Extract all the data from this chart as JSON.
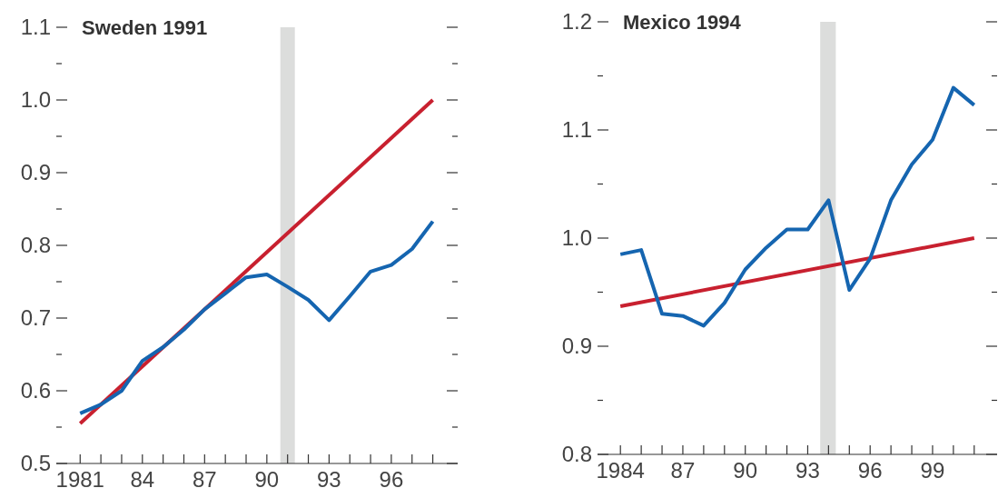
{
  "chart_data": [
    {
      "type": "line",
      "title": "Sweden 1991",
      "x": [
        1981,
        1982,
        1983,
        1984,
        1985,
        1986,
        1987,
        1988,
        1989,
        1990,
        1991,
        1992,
        1993,
        1994,
        1995,
        1996,
        1997,
        1998
      ],
      "series": [
        {
          "color": "#c8202f",
          "x": [
            1981,
            1998
          ],
          "values": [
            0.555,
            1.0
          ]
        },
        {
          "color": "#1565b0",
          "values": [
            0.569,
            0.581,
            0.6,
            0.641,
            0.66,
            0.684,
            0.712,
            0.734,
            0.756,
            0.76,
            0.743,
            0.725,
            0.697,
            0.73,
            0.764,
            0.773,
            0.795,
            0.833
          ]
        }
      ],
      "xlim": [
        1979.85,
        1999.2
      ],
      "xticks": [
        {
          "value": 1981,
          "label": "1981"
        },
        {
          "value": 1982,
          "label": null
        },
        {
          "value": 1983,
          "label": null
        },
        {
          "value": 1984,
          "label": "84"
        },
        {
          "value": 1985,
          "label": null
        },
        {
          "value": 1986,
          "label": null
        },
        {
          "value": 1987,
          "label": "87"
        },
        {
          "value": 1988,
          "label": null
        },
        {
          "value": 1989,
          "label": null
        },
        {
          "value": 1990,
          "label": "90"
        },
        {
          "value": 1991,
          "label": null
        },
        {
          "value": 1992,
          "label": null
        },
        {
          "value": 1993,
          "label": "93"
        },
        {
          "value": 1994,
          "label": null
        },
        {
          "value": 1995,
          "label": null
        },
        {
          "value": 1996,
          "label": "96"
        },
        {
          "value": 1997,
          "label": null
        },
        {
          "value": 1998,
          "label": null
        }
      ],
      "ylim": [
        0.5,
        1.1
      ],
      "yticks": [
        {
          "value": 0.5,
          "label": "0.5"
        },
        {
          "value": 0.55,
          "label": null
        },
        {
          "value": 0.6,
          "label": "0.6"
        },
        {
          "value": 0.65,
          "label": null
        },
        {
          "value": 0.7,
          "label": "0.7"
        },
        {
          "value": 0.75,
          "label": null
        },
        {
          "value": 0.8,
          "label": "0.8"
        },
        {
          "value": 0.85,
          "label": null
        },
        {
          "value": 0.9,
          "label": "0.9"
        },
        {
          "value": 0.95,
          "label": null
        },
        {
          "value": 1.0,
          "label": "1.0"
        },
        {
          "value": 1.05,
          "label": null
        },
        {
          "value": 1.1,
          "label": "1.1"
        }
      ],
      "bands": [
        {
          "axis": "x",
          "from": 1990.65,
          "to": 1991.35,
          "color": "#dcdddc"
        }
      ],
      "grid": false,
      "line_style": "solid",
      "marker": "none"
    },
    {
      "type": "line",
      "title": "Mexico 1994",
      "x": [
        1984,
        1985,
        1986,
        1987,
        1988,
        1989,
        1990,
        1991,
        1992,
        1993,
        1994,
        1995,
        1996,
        1997,
        1998,
        1999,
        2000,
        2001
      ],
      "series": [
        {
          "color": "#c8202f",
          "x": [
            1984,
            2001
          ],
          "values": [
            0.937,
            1.0
          ]
        },
        {
          "color": "#1565b0",
          "values": [
            0.985,
            0.989,
            0.93,
            0.928,
            0.919,
            0.94,
            0.971,
            0.991,
            1.008,
            1.008,
            1.035,
            0.952,
            0.981,
            1.035,
            1.068,
            1.091,
            1.139,
            1.123
          ]
        }
      ],
      "xlim": [
        1982.9,
        2002.1
      ],
      "xticks": [
        {
          "value": 1984,
          "label": "1984"
        },
        {
          "value": 1985,
          "label": null
        },
        {
          "value": 1986,
          "label": null
        },
        {
          "value": 1987,
          "label": "87"
        },
        {
          "value": 1988,
          "label": null
        },
        {
          "value": 1989,
          "label": null
        },
        {
          "value": 1990,
          "label": "90"
        },
        {
          "value": 1991,
          "label": null
        },
        {
          "value": 1992,
          "label": null
        },
        {
          "value": 1993,
          "label": "93"
        },
        {
          "value": 1994,
          "label": null
        },
        {
          "value": 1995,
          "label": null
        },
        {
          "value": 1996,
          "label": "96"
        },
        {
          "value": 1997,
          "label": null
        },
        {
          "value": 1998,
          "label": null
        },
        {
          "value": 1999,
          "label": "99"
        },
        {
          "value": 2000,
          "label": null
        },
        {
          "value": 2001,
          "label": null
        }
      ],
      "ylim": [
        0.8,
        1.2
      ],
      "yticks": [
        {
          "value": 0.8,
          "label": "0.8"
        },
        {
          "value": 0.85,
          "label": null
        },
        {
          "value": 0.9,
          "label": "0.9"
        },
        {
          "value": 0.95,
          "label": null
        },
        {
          "value": 1.0,
          "label": "1.0"
        },
        {
          "value": 1.05,
          "label": null
        },
        {
          "value": 1.1,
          "label": "1.1"
        },
        {
          "value": 1.15,
          "label": null
        },
        {
          "value": 1.2,
          "label": "1.2"
        }
      ],
      "bands": [
        {
          "axis": "x",
          "from": 1993.6,
          "to": 1994.35,
          "color": "#dcdddc"
        }
      ],
      "grid": false,
      "line_style": "solid",
      "marker": "none"
    }
  ]
}
